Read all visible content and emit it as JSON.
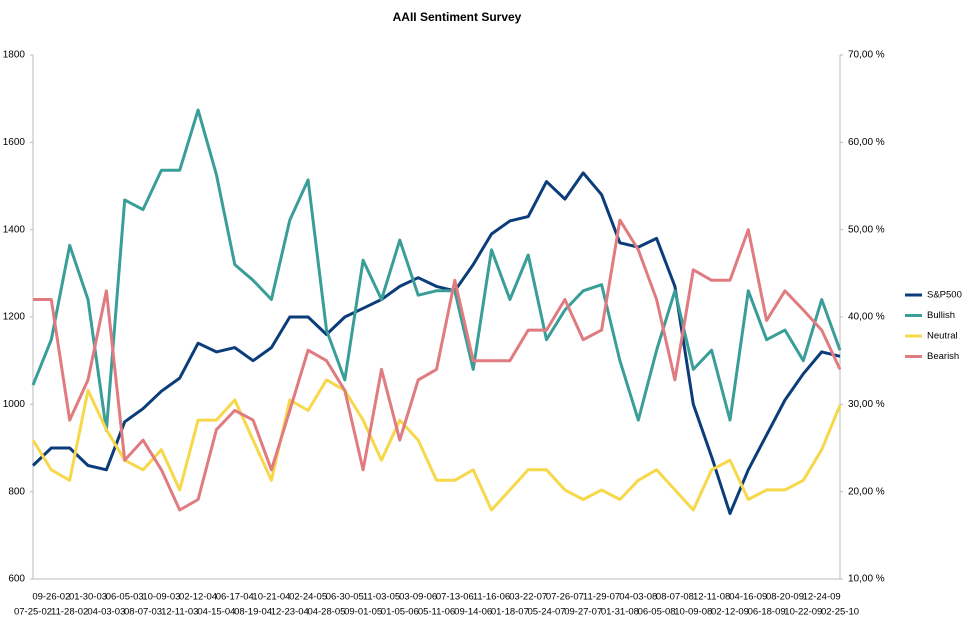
{
  "chart_data": {
    "type": "line",
    "title": "AAII Sentiment Survey",
    "categories": [
      "07-25-02",
      "09-26-02",
      "11-28-02",
      "01-30-03",
      "04-03-03",
      "06-05-03",
      "08-07-03",
      "10-09-03",
      "12-11-03",
      "02-12-04",
      "04-15-04",
      "06-17-04",
      "08-19-04",
      "10-21-04",
      "12-23-04",
      "02-24-05",
      "04-28-05",
      "06-30-05",
      "09-01-05",
      "11-03-05",
      "01-05-06",
      "03-09-06",
      "05-11-06",
      "07-13-06",
      "09-14-06",
      "11-16-06",
      "01-18-07",
      "03-22-07",
      "05-24-07",
      "07-26-07",
      "09-27-07",
      "11-29-07",
      "01-31-08",
      "04-03-08",
      "06-05-08",
      "08-07-08",
      "10-09-08",
      "12-11-08",
      "02-12-09",
      "04-16-09",
      "06-18-09",
      "08-20-09",
      "10-22-09",
      "12-24-09",
      "02-25-10"
    ],
    "series": [
      {
        "name": "S&P500",
        "color": "#0b3d7a",
        "values": [
          860,
          900,
          900,
          860,
          850,
          960,
          990,
          1030,
          1060,
          1140,
          1120,
          1130,
          1100,
          1130,
          1200,
          1200,
          1160,
          1200,
          1220,
          1240,
          1270,
          1290,
          1270,
          1260,
          1320,
          1390,
          1420,
          1430,
          1510,
          1470,
          1530,
          1480,
          1370,
          1360,
          1380,
          1270,
          1000,
          880,
          750,
          850,
          930,
          1010,
          1070,
          1120,
          1110
        ]
      },
      {
        "name": "Bullish",
        "color": "#3a9e98",
        "axis": "y2",
        "values": [
          32.2,
          37.4,
          48.2,
          42,
          27,
          53.4,
          52.3,
          56.8,
          56.8,
          63.7,
          56.3,
          46,
          44.2,
          42,
          51.1,
          55.7,
          38.5,
          32.8,
          46.5,
          42,
          48.8,
          42.5,
          43,
          43,
          34,
          47.7,
          42,
          47.1,
          37.4,
          40.8,
          43,
          43.7,
          35,
          28.2,
          36.2,
          43,
          34,
          36.2,
          28.2,
          43,
          37.4,
          38.5,
          35,
          42,
          36.2
        ]
      },
      {
        "name": "Neutral",
        "color": "#f7d84a",
        "axis": "y2",
        "values": [
          25.9,
          22.5,
          21.3,
          31.6,
          27.1,
          23.6,
          22.5,
          24.8,
          20.2,
          28.2,
          28.2,
          30.5,
          25.9,
          21.3,
          30.5,
          29.3,
          32.8,
          31.6,
          28.2,
          23.6,
          28.2,
          25.9,
          21.3,
          21.3,
          22.5,
          17.9,
          20.2,
          22.5,
          22.5,
          20.2,
          19.1,
          20.2,
          19.1,
          21.3,
          22.5,
          20.2,
          17.9,
          22.5,
          23.6,
          19.1,
          20.2,
          20.2,
          21.3,
          24.8,
          29.9
        ]
      },
      {
        "name": "Bearish",
        "color": "#e07b80",
        "axis": "y2",
        "values": [
          42,
          42,
          28.2,
          32.8,
          43,
          23.6,
          25.9,
          22.5,
          17.9,
          19.1,
          27.1,
          29.3,
          28.2,
          22.5,
          29.3,
          36.2,
          35,
          31.6,
          22.5,
          34,
          25.9,
          32.8,
          34,
          44.2,
          35,
          35,
          35,
          38.5,
          38.5,
          42,
          37.4,
          38.5,
          51.1,
          47.7,
          42,
          32.8,
          45.4,
          44.2,
          44.2,
          50,
          39.6,
          43,
          40.8,
          38.5,
          34
        ]
      }
    ],
    "ylim": [
      600,
      1800
    ],
    "yticks": [
      600,
      800,
      1000,
      1200,
      1400,
      1600,
      1800
    ],
    "y2lim": [
      10,
      70
    ],
    "y2ticks": [
      {
        "value": 10,
        "label": "10,00 %"
      },
      {
        "value": 20,
        "label": "20,00 %"
      },
      {
        "value": 30,
        "label": "30,00 %"
      },
      {
        "value": 40,
        "label": "40,00 %"
      },
      {
        "value": 50,
        "label": "50,00 %"
      },
      {
        "value": 60,
        "label": "60,00 %"
      },
      {
        "value": 70,
        "label": "70,00 %"
      }
    ],
    "legend": "right"
  }
}
